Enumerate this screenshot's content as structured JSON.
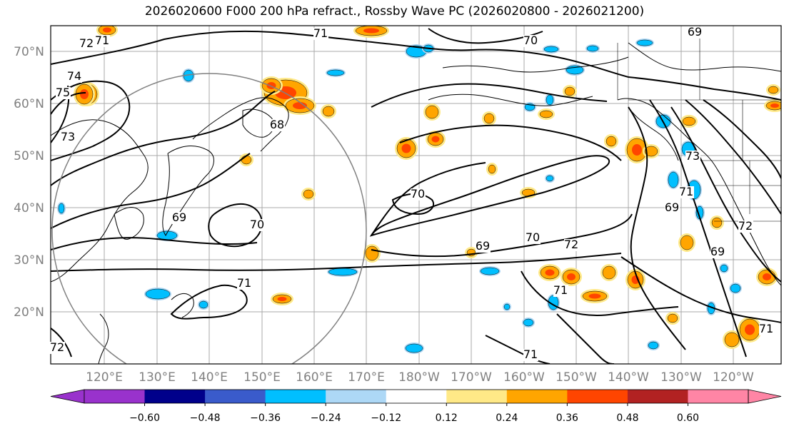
{
  "title": "2026020600 F000 200 hPa refract., Rossby Wave PC (2026020800 - 2026021200)",
  "lat_labels": [
    "70°N",
    "60°N",
    "50°N",
    "40°N",
    "30°N",
    "20°N"
  ],
  "lon_labels": [
    "120°E",
    "130°E",
    "140°E",
    "150°E",
    "160°E",
    "170°E",
    "180°W",
    "170°W",
    "160°W",
    "150°W",
    "140°W",
    "130°W",
    "120°W"
  ],
  "contour_labels": [
    "71",
    "70",
    "69",
    "71",
    "72",
    "74",
    "75",
    "73",
    "68",
    "70",
    "69",
    "70",
    "69",
    "70",
    "72",
    "71",
    "71",
    "71",
    "73",
    "71",
    "69",
    "72",
    "69",
    "71",
    "72"
  ],
  "colorbar": {
    "ticks": [
      "−0.60",
      "−0.48",
      "−0.36",
      "−0.24",
      "−0.12",
      "0.12",
      "0.24",
      "0.36",
      "0.48",
      "0.60"
    ],
    "colors": [
      "#9932CC",
      "#00008B",
      "#3A5BCB",
      "#00BFFF",
      "#ADD8F6",
      "#FFFFFF",
      "#FFE987",
      "#FFA500",
      "#FF4500",
      "#B22222",
      "#FF85A5"
    ]
  }
}
